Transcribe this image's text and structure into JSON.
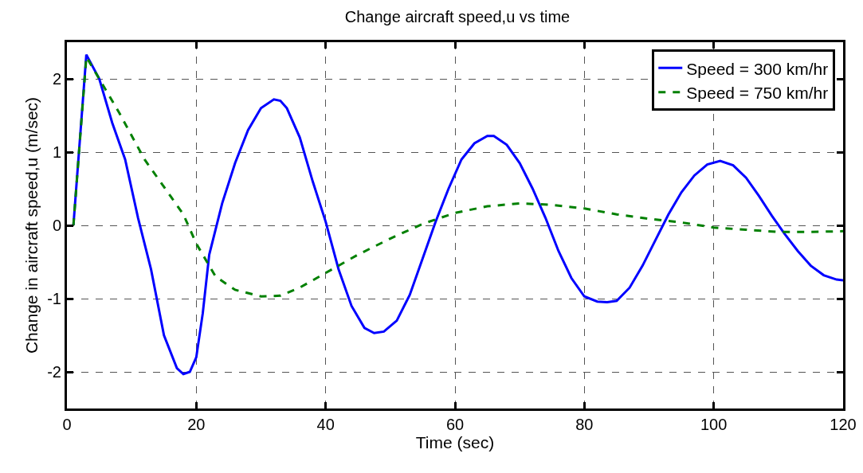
{
  "chart_data": {
    "type": "line",
    "title": "Change aircraft speed,u vs time",
    "xlabel": "Time (sec)",
    "ylabel": "Change in aircraft speed,u (m/sec)",
    "xlim": [
      0,
      120
    ],
    "xticks": [
      0,
      20,
      40,
      60,
      80,
      100,
      120
    ],
    "ylim": [
      -2.5,
      2.5
    ],
    "yticks": [
      -2,
      -1,
      0,
      1,
      2
    ],
    "grid": true,
    "legend": "top right",
    "series": [
      {
        "name": "Speed = 300 km/hr",
        "color": "#0000ff",
        "line_style": "solid",
        "x": [
          1,
          3,
          5,
          7,
          9,
          11,
          13,
          15,
          17,
          18,
          19,
          20,
          21,
          22,
          24,
          26,
          28,
          30,
          32,
          33,
          34,
          36,
          38,
          40,
          42,
          44,
          46,
          47.5,
          49,
          51,
          53,
          55,
          57,
          59,
          61,
          63,
          65,
          66,
          68,
          70,
          72,
          74,
          76,
          78,
          80,
          82,
          83.5,
          85,
          87,
          89,
          91,
          93,
          95,
          97,
          99,
          101,
          103,
          105,
          107,
          109,
          111,
          113,
          115,
          117,
          119,
          120
        ],
        "values": [
          0,
          2.33,
          2.0,
          1.4,
          0.9,
          0.1,
          -0.6,
          -1.5,
          -1.95,
          -2.03,
          -2.0,
          -1.8,
          -1.2,
          -0.4,
          0.3,
          0.85,
          1.3,
          1.6,
          1.72,
          1.7,
          1.6,
          1.2,
          0.6,
          0.05,
          -0.6,
          -1.1,
          -1.4,
          -1.47,
          -1.45,
          -1.3,
          -0.95,
          -0.45,
          0.05,
          0.5,
          0.9,
          1.12,
          1.22,
          1.22,
          1.1,
          0.85,
          0.5,
          0.1,
          -0.35,
          -0.72,
          -0.97,
          -1.04,
          -1.05,
          -1.03,
          -0.85,
          -0.55,
          -0.2,
          0.15,
          0.45,
          0.68,
          0.83,
          0.88,
          0.82,
          0.65,
          0.4,
          0.13,
          -0.12,
          -0.35,
          -0.55,
          -0.68,
          -0.74,
          -0.75
        ]
      },
      {
        "name": "Speed = 750 km/hr",
        "color": "#008000",
        "line_style": "dashed",
        "x": [
          1,
          3,
          5,
          8,
          12,
          16,
          18,
          20,
          23,
          26,
          30,
          33,
          36,
          40,
          45,
          50,
          55,
          60,
          65,
          70,
          75,
          80,
          85,
          90,
          95,
          100,
          105,
          110,
          115,
          120
        ],
        "values": [
          0,
          2.3,
          2.0,
          1.55,
          0.9,
          0.4,
          0.15,
          -0.25,
          -0.7,
          -0.88,
          -0.97,
          -0.96,
          -0.85,
          -0.65,
          -0.4,
          -0.18,
          0.02,
          0.17,
          0.26,
          0.3,
          0.28,
          0.23,
          0.15,
          0.09,
          0.04,
          -0.03,
          -0.06,
          -0.09,
          -0.09,
          -0.08
        ]
      }
    ]
  }
}
